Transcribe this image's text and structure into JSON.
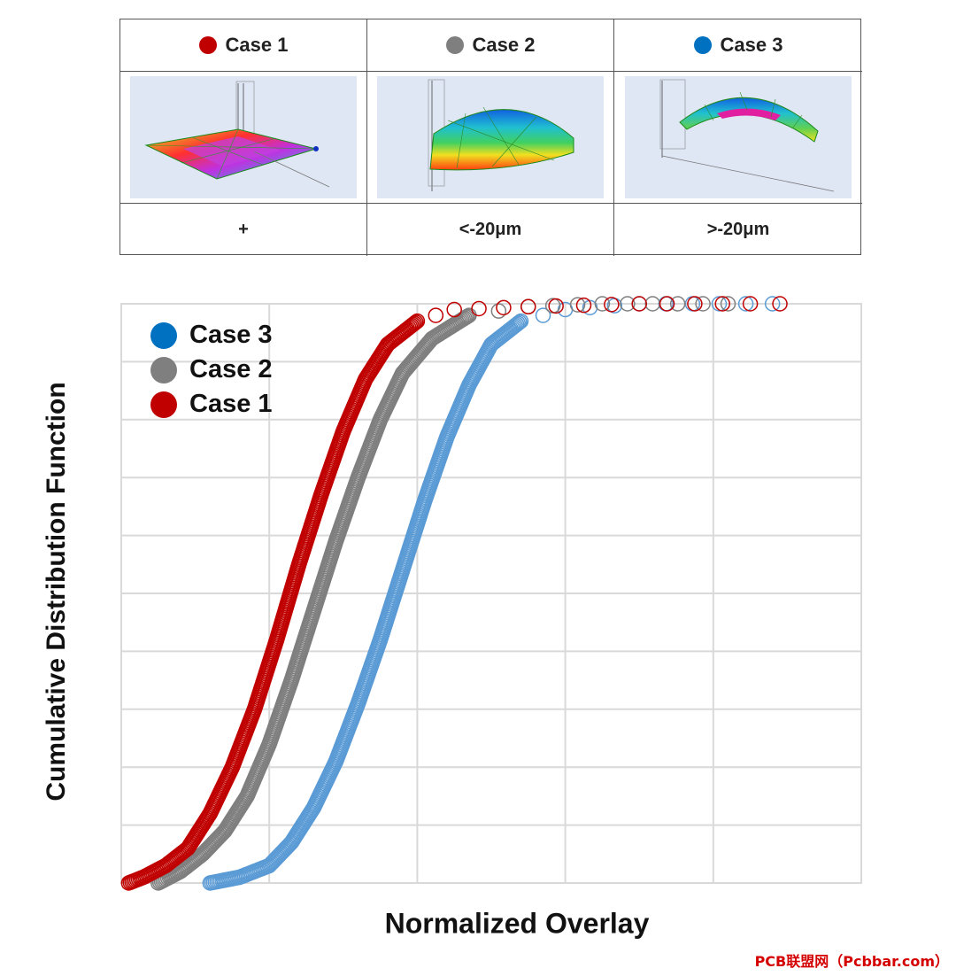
{
  "table": {
    "cases": [
      {
        "label": "Case 1",
        "color": "#c00000",
        "value": "+",
        "thumbnail": "case-1-warpage-plot"
      },
      {
        "label": "Case 2",
        "color": "#7f7f7f",
        "value": "<-20μm",
        "thumbnail": "case-2-warpage-plot"
      },
      {
        "label": "Case 3",
        "color": "#0070c0",
        "value": ">-20μm",
        "thumbnail": "case-3-warpage-plot"
      }
    ]
  },
  "chart_data": {
    "type": "scatter",
    "title": "",
    "xlabel": "Normalized Overlay",
    "ylabel": "Cumulative Distribution Function",
    "xlim": [
      0,
      1
    ],
    "ylim": [
      0,
      1
    ],
    "grid": true,
    "legend_position": "top-left",
    "legend_order": [
      "Case 3",
      "Case 2",
      "Case 1"
    ],
    "marker": "open-circle",
    "series": [
      {
        "name": "Case 1",
        "color": "#c00000",
        "points": [
          [
            0.01,
            0.0
          ],
          [
            0.03,
            0.01
          ],
          [
            0.06,
            0.03
          ],
          [
            0.09,
            0.06
          ],
          [
            0.12,
            0.12
          ],
          [
            0.15,
            0.2
          ],
          [
            0.18,
            0.3
          ],
          [
            0.21,
            0.42
          ],
          [
            0.24,
            0.55
          ],
          [
            0.27,
            0.67
          ],
          [
            0.3,
            0.78
          ],
          [
            0.33,
            0.87
          ],
          [
            0.36,
            0.93
          ],
          [
            0.4,
            0.97
          ],
          [
            0.45,
            0.99
          ],
          [
            0.55,
            0.995
          ],
          [
            0.7,
            1.0
          ],
          [
            0.85,
            1.0
          ],
          [
            0.89,
            1.0
          ]
        ]
      },
      {
        "name": "Case 2",
        "color": "#7f7f7f",
        "points": [
          [
            0.05,
            0.0
          ],
          [
            0.08,
            0.02
          ],
          [
            0.11,
            0.05
          ],
          [
            0.14,
            0.09
          ],
          [
            0.17,
            0.15
          ],
          [
            0.2,
            0.24
          ],
          [
            0.23,
            0.35
          ],
          [
            0.26,
            0.47
          ],
          [
            0.29,
            0.59
          ],
          [
            0.32,
            0.7
          ],
          [
            0.35,
            0.8
          ],
          [
            0.38,
            0.88
          ],
          [
            0.42,
            0.94
          ],
          [
            0.47,
            0.98
          ],
          [
            0.55,
            0.995
          ],
          [
            0.65,
            1.0
          ],
          [
            0.82,
            1.0
          ]
        ]
      },
      {
        "name": "Case 3",
        "color": "#5b9bd5",
        "points": [
          [
            0.12,
            0.0
          ],
          [
            0.16,
            0.01
          ],
          [
            0.2,
            0.03
          ],
          [
            0.23,
            0.07
          ],
          [
            0.26,
            0.13
          ],
          [
            0.29,
            0.21
          ],
          [
            0.32,
            0.31
          ],
          [
            0.35,
            0.42
          ],
          [
            0.38,
            0.54
          ],
          [
            0.41,
            0.66
          ],
          [
            0.44,
            0.77
          ],
          [
            0.47,
            0.86
          ],
          [
            0.5,
            0.93
          ],
          [
            0.54,
            0.97
          ],
          [
            0.6,
            0.99
          ],
          [
            0.7,
            1.0
          ],
          [
            0.88,
            1.0
          ]
        ]
      }
    ]
  },
  "watermark": "PCB联盟网（Pcbbar.com）"
}
